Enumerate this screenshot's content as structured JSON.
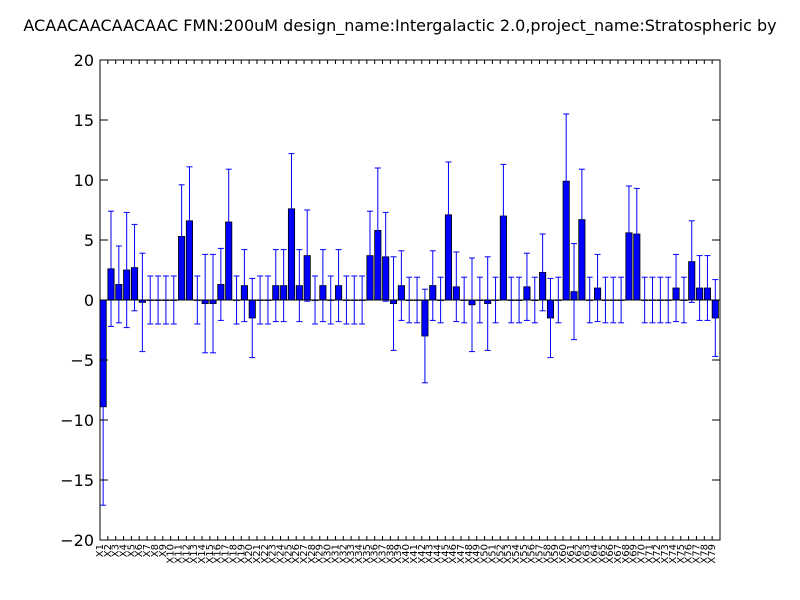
{
  "chart_data": {
    "type": "bar",
    "title": "ACAACAACAACAAC  FMN:200uM  design_name:Intergalactic 2.0,project_name:Stratospheric by",
    "xlabel": "",
    "ylabel": "",
    "ylim": [
      -20,
      20
    ],
    "yticks": [
      "20",
      "15",
      "10",
      "5",
      "0",
      "−5",
      "−10",
      "−15",
      "−20"
    ],
    "grid": false,
    "error_bars": true,
    "bar_color": "#0000ff",
    "error_color": "#0000ff",
    "categories": [
      "X1",
      "X2",
      "X3",
      "X4",
      "X5",
      "X6",
      "X7",
      "X8",
      "X9",
      "X10",
      "X11",
      "X12",
      "X13",
      "X14",
      "X15",
      "X16",
      "X17",
      "X18",
      "X19",
      "X20",
      "X21",
      "X22",
      "X23",
      "X24",
      "X25",
      "X26",
      "X27",
      "X28",
      "X29",
      "X30",
      "X31",
      "X32",
      "X33",
      "X34",
      "X35",
      "X36",
      "X37",
      "X38",
      "X39",
      "X40",
      "X41",
      "X42",
      "X43",
      "X44",
      "X45",
      "X46",
      "X47",
      "X48",
      "X49",
      "X50",
      "X51",
      "X52",
      "X53",
      "X54",
      "X55",
      "X56",
      "X57",
      "X58",
      "X59",
      "X60",
      "X61",
      "X62",
      "X63",
      "X64",
      "X65",
      "X66",
      "X67",
      "X68",
      "X69",
      "X70",
      "X71",
      "X72",
      "X73",
      "X74",
      "X75",
      "X76",
      "X77",
      "X78",
      "X79"
    ],
    "values": [
      -8.9,
      2.6,
      1.3,
      2.5,
      2.7,
      -0.2,
      0,
      0,
      0,
      0,
      5.3,
      6.6,
      0,
      -0.3,
      -0.3,
      1.3,
      6.5,
      0,
      1.2,
      -1.5,
      0,
      0,
      1.2,
      1.2,
      7.6,
      1.2,
      3.7,
      0,
      1.2,
      0,
      1.2,
      0,
      0,
      0,
      3.7,
      5.8,
      3.6,
      -0.3,
      1.2,
      0,
      0,
      -3.0,
      1.2,
      0,
      7.1,
      1.1,
      0,
      -0.4,
      0,
      -0.3,
      0,
      7.0,
      0,
      0,
      1.1,
      0,
      2.3,
      -1.5,
      0,
      9.9,
      0.7,
      6.7,
      0,
      1.0,
      0,
      0,
      0,
      5.6,
      5.5,
      0,
      0,
      0,
      0,
      1.0,
      0,
      3.2,
      1.0,
      1.0,
      -1.5
    ],
    "errors": [
      8.2,
      4.8,
      3.2,
      4.8,
      3.6,
      4.1,
      2.0,
      2.0,
      2.0,
      2.0,
      4.3,
      4.5,
      2.0,
      4.1,
      4.1,
      3.0,
      4.4,
      2.0,
      3.0,
      3.3,
      2.0,
      2.0,
      3.0,
      3.0,
      4.6,
      3.0,
      3.8,
      2.0,
      3.0,
      2.0,
      3.0,
      2.0,
      2.0,
      2.0,
      3.7,
      5.2,
      3.7,
      3.9,
      2.9,
      1.9,
      1.9,
      3.9,
      2.9,
      1.9,
      4.4,
      2.9,
      1.9,
      3.9,
      1.9,
      3.9,
      1.9,
      4.3,
      1.9,
      1.9,
      2.8,
      1.9,
      3.2,
      3.3,
      1.9,
      5.6,
      4.0,
      4.2,
      1.9,
      2.8,
      1.9,
      1.9,
      1.9,
      3.9,
      3.8,
      1.9,
      1.9,
      1.9,
      1.9,
      2.8,
      1.9,
      3.4,
      2.7,
      2.7,
      3.2
    ]
  }
}
